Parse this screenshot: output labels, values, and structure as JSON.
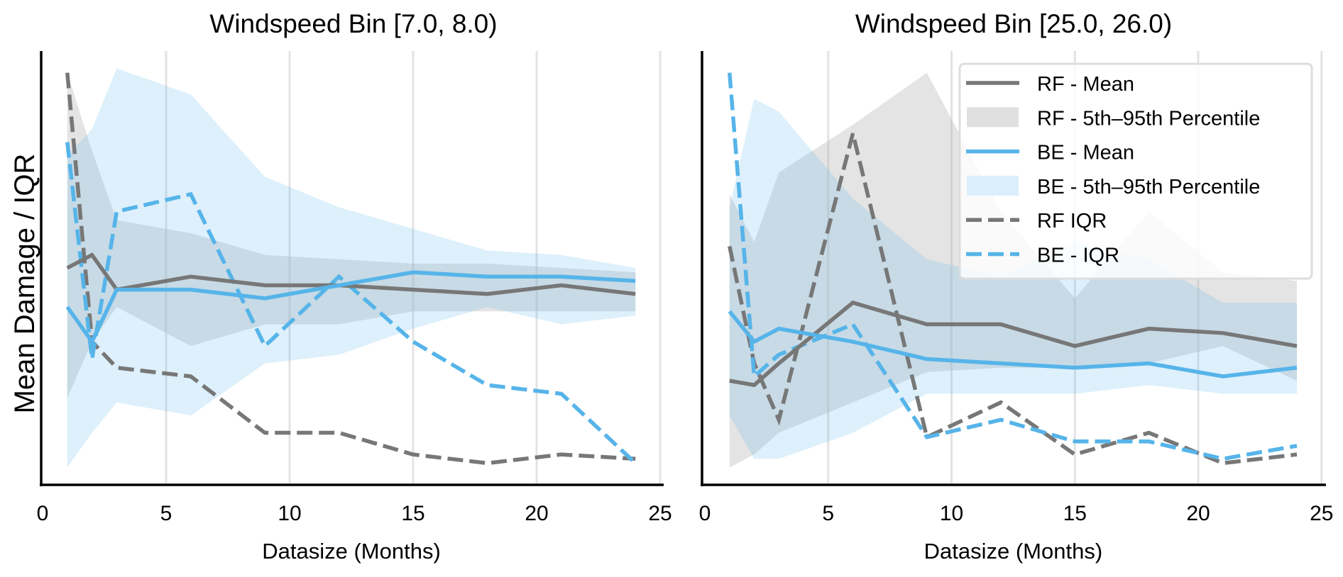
{
  "chart_data": [
    {
      "type": "line",
      "title": "Windspeed Bin [7.0, 8.0)",
      "xlabel": "Datasize (Months)",
      "ylabel": "Mean Damage / IQR",
      "y_units": "normalized (no y tick labels shown; 0 = axis bottom, 1 = axis top)",
      "xlim": [
        0,
        25
      ],
      "ylim": [
        0,
        1
      ],
      "xticks": [
        "0",
        "5",
        "10",
        "15",
        "20",
        "25"
      ],
      "grid": "vertical",
      "legend": null,
      "x": [
        1,
        2,
        3,
        6,
        9,
        12,
        15,
        18,
        21,
        24
      ],
      "series": [
        {
          "name": "RF - Mean",
          "kind": "line",
          "color": "#777777",
          "dash": false,
          "values": [
            0.5,
            0.53,
            0.45,
            0.48,
            0.46,
            0.46,
            0.45,
            0.44,
            0.46,
            0.44
          ]
        },
        {
          "name": "RF - 5th–95th Percentile",
          "kind": "band",
          "color": "#cccccc",
          "lower": [
            0.2,
            0.33,
            0.41,
            0.32,
            0.37,
            0.37,
            0.4,
            0.4,
            0.4,
            0.4
          ],
          "upper": [
            0.95,
            0.77,
            0.61,
            0.58,
            0.53,
            0.52,
            0.51,
            0.51,
            0.5,
            0.49
          ]
        },
        {
          "name": "BE - Mean",
          "kind": "line",
          "color": "#56B4E9",
          "dash": false,
          "values": [
            0.41,
            0.33,
            0.45,
            0.45,
            0.43,
            0.46,
            0.49,
            0.48,
            0.48,
            0.47
          ]
        },
        {
          "name": "BE - 5th–95th Percentile",
          "kind": "band",
          "color": "#56B4E9",
          "lower": [
            0.04,
            0.12,
            0.19,
            0.16,
            0.28,
            0.3,
            0.36,
            0.41,
            0.37,
            0.39
          ],
          "upper": [
            0.76,
            0.82,
            0.96,
            0.9,
            0.71,
            0.64,
            0.59,
            0.54,
            0.53,
            0.5
          ]
        },
        {
          "name": "RF IQR",
          "kind": "line",
          "color": "#777777",
          "dash": true,
          "values": [
            0.95,
            0.33,
            0.27,
            0.25,
            0.12,
            0.12,
            0.07,
            0.05,
            0.07,
            0.06
          ]
        },
        {
          "name": "BE - IQR",
          "kind": "line",
          "color": "#56B4E9",
          "dash": true,
          "values": [
            0.79,
            0.29,
            0.63,
            0.67,
            0.32,
            0.48,
            0.33,
            0.23,
            0.21,
            0.05
          ]
        }
      ]
    },
    {
      "type": "line",
      "title": "Windspeed Bin [25.0, 26.0)",
      "xlabel": "Datasize (Months)",
      "ylabel": "",
      "y_units": "normalized (no y tick labels shown; 0 = axis bottom, 1 = axis top)",
      "xlim": [
        0,
        25
      ],
      "ylim": [
        0,
        1
      ],
      "xticks": [
        "0",
        "5",
        "10",
        "15",
        "20",
        "25"
      ],
      "grid": "vertical",
      "legend": "top-right",
      "x": [
        1,
        2,
        3,
        6,
        9,
        12,
        15,
        18,
        21,
        24
      ],
      "series": [
        {
          "name": "RF - Mean",
          "kind": "line",
          "color": "#777777",
          "dash": false,
          "values": [
            0.24,
            0.23,
            0.28,
            0.42,
            0.37,
            0.37,
            0.32,
            0.36,
            0.35,
            0.32
          ]
        },
        {
          "name": "RF - 5th–95th Percentile",
          "kind": "band",
          "color": "#cccccc",
          "lower": [
            0.04,
            0.07,
            0.12,
            0.19,
            0.26,
            0.27,
            0.27,
            0.28,
            0.32,
            0.24
          ]
        },
        {
          "name": "BE - Mean",
          "kind": "line",
          "color": "#56B4E9",
          "dash": false,
          "values": [
            0.4,
            0.33,
            0.36,
            0.33,
            0.29,
            0.28,
            0.27,
            0.28,
            0.25,
            0.27
          ]
        },
        {
          "name": "BE - 5th–95th Percentile",
          "kind": "band",
          "color": "#56B4E9",
          "lower": [
            0.16,
            0.06,
            0.06,
            0.12,
            0.21,
            0.21,
            0.21,
            0.23,
            0.21,
            0.21
          ],
          "upper": [
            0.64,
            0.89,
            0.86,
            0.66,
            0.52,
            0.48,
            0.56,
            0.52,
            0.42,
            0.42
          ]
        },
        {
          "name": "RF IQR",
          "kind": "line",
          "color": "#777777",
          "dash": true,
          "values": [
            0.55,
            0.28,
            0.15,
            0.81,
            0.11,
            0.19,
            0.07,
            0.12,
            0.05,
            0.07
          ]
        },
        {
          "name": "BE - IQR",
          "kind": "line",
          "color": "#56B4E9",
          "dash": true,
          "values": [
            0.95,
            0.25,
            0.3,
            0.37,
            0.11,
            0.15,
            0.1,
            0.1,
            0.06,
            0.09
          ]
        }
      ]
    }
  ],
  "legend_items": [
    {
      "label": "RF - Mean",
      "style": "line",
      "color": "#777777"
    },
    {
      "label": "RF - 5th–95th Percentile",
      "style": "patch",
      "color": "#e0e0e0"
    },
    {
      "label": "BE - Mean",
      "style": "line",
      "color": "#56B4E9"
    },
    {
      "label": "BE - 5th–95th Percentile",
      "style": "patch",
      "color": "#dbeefb"
    },
    {
      "label": "RF IQR",
      "style": "dash",
      "color": "#777777"
    },
    {
      "label": "BE - IQR",
      "style": "dash",
      "color": "#56B4E9"
    }
  ],
  "rf_band_upper_right": [
    0.67,
    0.56,
    0.72,
    0.83,
    0.95,
    0.63,
    0.43,
    0.63,
    0.49,
    0.47
  ]
}
